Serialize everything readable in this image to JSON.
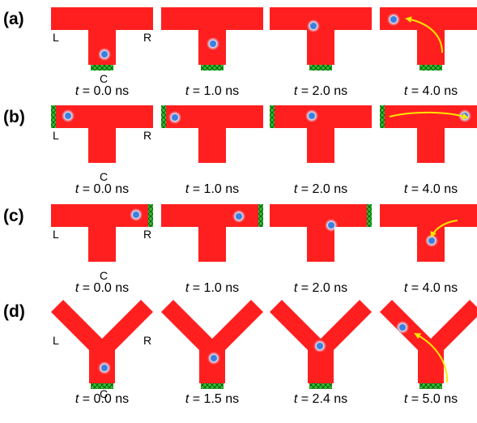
{
  "colors": {
    "channel": "#ff1f1f",
    "channel_edge": "#ff4a4a",
    "particle_core": "#3b7fe0",
    "particle_glow": "#cfe6ff",
    "contact_fill": "#31c131",
    "arrow": "#ffe600"
  },
  "ports": {
    "left": "L",
    "right": "R",
    "center": "C"
  },
  "time_prefix": "t",
  "rows": [
    {
      "label": "(a)",
      "geometry": "T",
      "contact": "bottom",
      "port_labels": true,
      "frames": [
        {
          "time": "= 0.0 ns",
          "particle": "stem-low"
        },
        {
          "time": "= 1.0 ns",
          "particle": "stem-mid"
        },
        {
          "time": "= 2.0 ns",
          "particle": "junction"
        },
        {
          "time": "= 4.0 ns",
          "particle": "left-arm",
          "arrow": "up-left"
        }
      ]
    },
    {
      "label": "(b)",
      "geometry": "T",
      "contact": "left",
      "port_labels": true,
      "frames": [
        {
          "time": "= 0.0 ns",
          "particle": "left-end"
        },
        {
          "time": "= 1.0 ns",
          "particle": "left-arm"
        },
        {
          "time": "= 2.0 ns",
          "particle": "junction-top"
        },
        {
          "time": "= 4.0 ns",
          "particle": "right-end",
          "arrow": "right"
        }
      ]
    },
    {
      "label": "(c)",
      "geometry": "T",
      "contact": "right",
      "port_labels": true,
      "frames": [
        {
          "time": "= 0.0 ns",
          "particle": "right-end"
        },
        {
          "time": "= 1.0 ns",
          "particle": "right-arm"
        },
        {
          "time": "= 2.0 ns",
          "particle": "junction-low"
        },
        {
          "time": "= 4.0 ns",
          "particle": "stem-mid",
          "arrow": "down-left"
        }
      ]
    },
    {
      "label": "(d)",
      "geometry": "Y",
      "contact": "bottom",
      "port_labels": true,
      "frames": [
        {
          "time": "= 0.0 ns",
          "particle": "stem-low"
        },
        {
          "time": "= 1.5 ns",
          "particle": "stem-mid"
        },
        {
          "time": "= 2.4 ns",
          "particle": "junction"
        },
        {
          "time": "= 5.0 ns",
          "particle": "left-arm",
          "arrow": "up-left"
        }
      ]
    }
  ]
}
